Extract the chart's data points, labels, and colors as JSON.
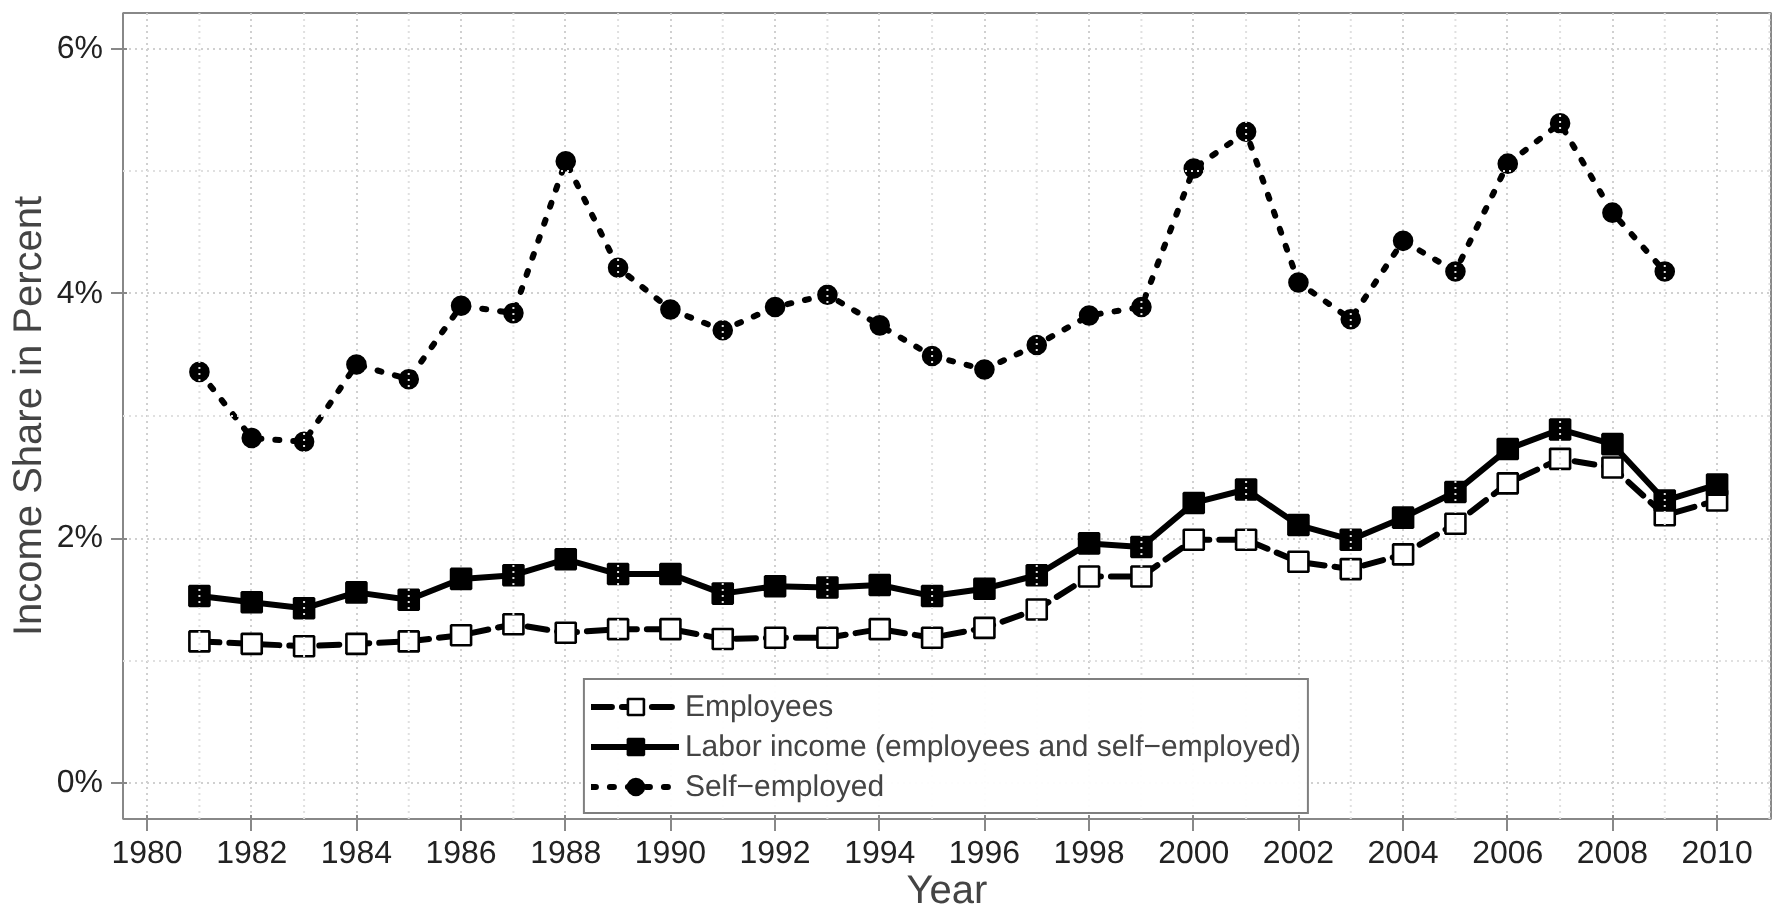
{
  "chart_data": {
    "type": "line",
    "xlabel": "Year",
    "ylabel": "Income Share in Percent",
    "x": [
      1981,
      1982,
      1983,
      1984,
      1985,
      1986,
      1987,
      1988,
      1989,
      1990,
      1991,
      1992,
      1993,
      1994,
      1995,
      1996,
      1997,
      1998,
      1999,
      2000,
      2001,
      2002,
      2003,
      2004,
      2005,
      2006,
      2007,
      2008,
      2009,
      2010
    ],
    "series": [
      {
        "name": "Employees",
        "color": "#000000",
        "marker": "square",
        "line_style": "dashed",
        "values": [
          1.16,
          1.14,
          1.12,
          1.14,
          1.16,
          1.21,
          1.3,
          1.23,
          1.26,
          1.26,
          1.18,
          1.19,
          1.19,
          1.26,
          1.19,
          1.27,
          1.42,
          1.69,
          1.69,
          1.99,
          1.99,
          1.81,
          1.75,
          1.87,
          2.12,
          2.45,
          2.65,
          2.58,
          2.19,
          2.31
        ]
      },
      {
        "name": "Labor income (employees and self−employed)",
        "color": "#000000",
        "marker": "square",
        "line_style": "solid",
        "values": [
          1.53,
          1.48,
          1.43,
          1.56,
          1.5,
          1.67,
          1.7,
          1.83,
          1.71,
          1.71,
          1.55,
          1.61,
          1.6,
          1.62,
          1.53,
          1.59,
          1.7,
          1.96,
          1.93,
          2.29,
          2.4,
          2.11,
          1.99,
          2.17,
          2.38,
          2.73,
          2.89,
          2.77,
          2.31,
          2.44
        ]
      },
      {
        "name": "Self−employed",
        "color": "#000000",
        "marker": "circle",
        "line_style": "dotted",
        "values": [
          3.36,
          2.82,
          2.79,
          3.42,
          3.3,
          3.9,
          3.84,
          5.08,
          4.21,
          3.87,
          3.7,
          3.89,
          3.99,
          3.74,
          3.49,
          3.38,
          3.58,
          3.82,
          3.89,
          5.02,
          5.32,
          4.09,
          3.79,
          4.43,
          4.18,
          5.06,
          5.39,
          4.66,
          4.18,
          null
        ]
      }
    ],
    "xlim": [
      1979.54,
      2011.03
    ],
    "ylim": [
      -0.29,
      6.29
    ],
    "xticks": [
      1980,
      1982,
      1984,
      1986,
      1988,
      1990,
      1992,
      1994,
      1996,
      1998,
      2000,
      2002,
      2004,
      2006,
      2008,
      2010
    ],
    "yticks": [
      {
        "value": 0,
        "label": "0%"
      },
      {
        "value": 2,
        "label": "2%"
      },
      {
        "value": 4,
        "label": "4%"
      },
      {
        "value": 6,
        "label": "6%"
      }
    ],
    "grid": true,
    "legend": "bottom"
  }
}
